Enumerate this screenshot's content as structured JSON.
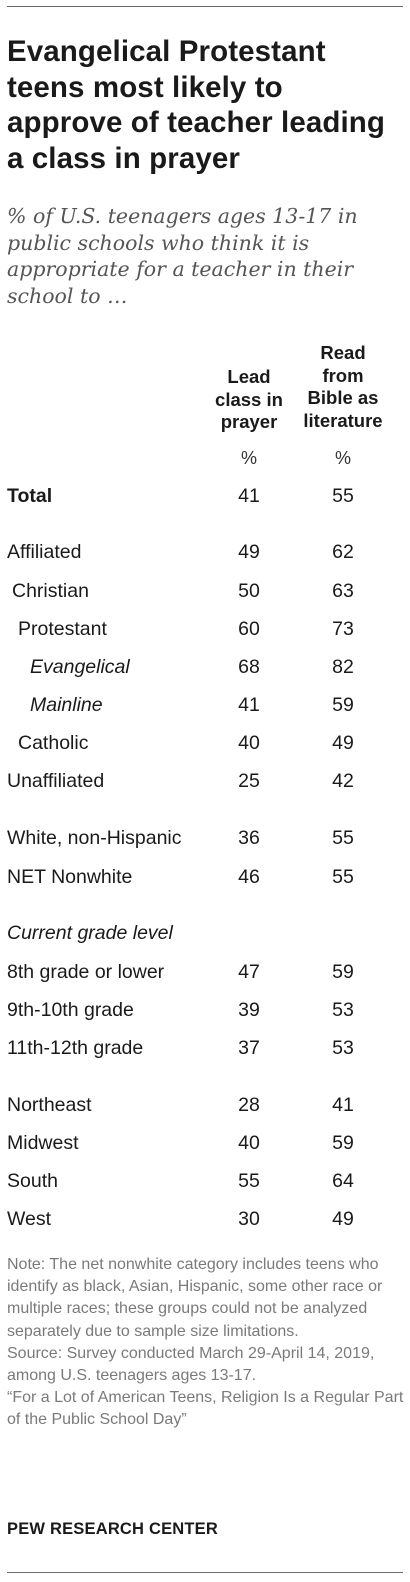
{
  "title": "Evangelical Protestant teens most likely to approve of teacher leading a class in prayer",
  "subtitle": "% of U.S. teenagers ages 13-17 in public schools who think it is appropriate for a teacher in their school to …",
  "columns": [
    {
      "header_lines": [
        "Lead",
        "class in",
        "prayer"
      ],
      "unit": "%"
    },
    {
      "header_lines": [
        "Read",
        "from",
        "Bible as",
        "literature"
      ],
      "unit": "%"
    }
  ],
  "chart_data": {
    "type": "table",
    "columns": [
      "Lead class in prayer",
      "Read from Bible as literature"
    ],
    "rows": [
      {
        "label": "Total",
        "values": [
          41,
          55
        ]
      },
      {
        "label": "Affiliated",
        "values": [
          49,
          62
        ]
      },
      {
        "label": "Christian",
        "values": [
          50,
          63
        ]
      },
      {
        "label": "Protestant",
        "values": [
          60,
          73
        ]
      },
      {
        "label": "Evangelical",
        "values": [
          68,
          82
        ]
      },
      {
        "label": "Mainline",
        "values": [
          41,
          59
        ]
      },
      {
        "label": "Catholic",
        "values": [
          40,
          49
        ]
      },
      {
        "label": "Unaffiliated",
        "values": [
          25,
          42
        ]
      },
      {
        "label": "White, non-Hispanic",
        "values": [
          36,
          55
        ]
      },
      {
        "label": "NET Nonwhite",
        "values": [
          46,
          55
        ]
      },
      {
        "label": "8th grade or lower",
        "values": [
          47,
          59
        ]
      },
      {
        "label": "9th-10th grade",
        "values": [
          39,
          53
        ]
      },
      {
        "label": "11th-12th grade",
        "values": [
          37,
          53
        ]
      },
      {
        "label": "Northeast",
        "values": [
          28,
          41
        ]
      },
      {
        "label": "Midwest",
        "values": [
          40,
          59
        ]
      },
      {
        "label": "South",
        "values": [
          55,
          64
        ]
      },
      {
        "label": "West",
        "values": [
          30,
          49
        ]
      }
    ],
    "section_labels": [
      "Current grade level"
    ]
  },
  "note": "Note: The net nonwhite category includes teens who identify as black, Asian, Hispanic, some other race or multiple races; these groups could not be analyzed separately due to sample size limitations.",
  "source": "Source: Survey conducted March 29-April 14, 2019, among U.S. teenagers ages 13-17.",
  "report": "“For a Lot of American Teens, Religion Is a Regular Part of the Public School Day”",
  "brand": "PEW RESEARCH CENTER"
}
